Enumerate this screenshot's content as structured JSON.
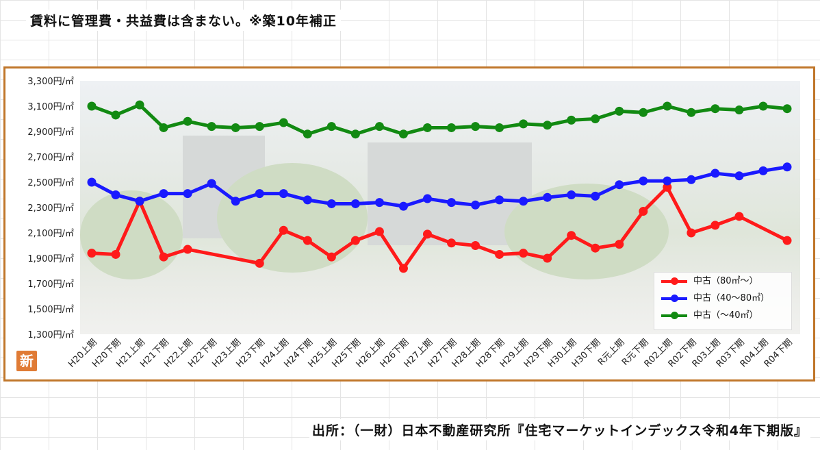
{
  "header_note": "賃料に管理費・共益費は含まない。※築10年補正",
  "source_note": "出所：（一財）日本不動産研究所『住宅マーケットインデックス令和4年下期版』",
  "badge": "新",
  "chart_data": {
    "type": "line",
    "ylim": [
      1300,
      3300
    ],
    "yticks": [
      3300,
      3100,
      2900,
      2700,
      2500,
      2300,
      2100,
      1900,
      1700,
      1500,
      1300
    ],
    "ytick_labels": [
      "3,300円/㎡",
      "3,100円/㎡",
      "2,900円/㎡",
      "2,700円/㎡",
      "2,500円/㎡",
      "2,300円/㎡",
      "2,100円/㎡",
      "1,900円/㎡",
      "1,700円/㎡",
      "1,500円/㎡",
      "1,300円/㎡"
    ],
    "categories": [
      "H20上期",
      "H20下期",
      "H21上期",
      "H21下期",
      "H22上期",
      "H22下期",
      "H23上期",
      "H23下期",
      "H24上期",
      "H24下期",
      "H25上期",
      "H25下期",
      "H26上期",
      "H26下期",
      "H27上期",
      "H27下期",
      "H28上期",
      "H28下期",
      "H29上期",
      "H29下期",
      "H30上期",
      "H30下期",
      "R元上期",
      "R元下期",
      "R02上期",
      "R02下期",
      "R03上期",
      "R03下期",
      "R04上期",
      "R04下期"
    ],
    "legend_position": "bottom-right",
    "series": [
      {
        "name": "中古（80㎡～）",
        "color": "#ff1a1a",
        "values": [
          1940,
          1930,
          2350,
          1910,
          1970,
          null,
          null,
          1860,
          2120,
          2040,
          1910,
          2040,
          2110,
          1820,
          2090,
          2020,
          2000,
          1930,
          1940,
          1900,
          2080,
          1980,
          2010,
          2270,
          2460,
          2100,
          2160,
          2230,
          null,
          2040
        ]
      },
      {
        "name": "中古（40～80㎡）",
        "color": "#1a1aff",
        "values": [
          2500,
          2400,
          2350,
          2410,
          2410,
          2490,
          2350,
          2410,
          2410,
          2360,
          2330,
          2330,
          2340,
          2310,
          2370,
          2340,
          2320,
          2360,
          2350,
          2380,
          2400,
          2390,
          2480,
          2510,
          2510,
          2520,
          2570,
          2550,
          2590,
          2620
        ]
      },
      {
        "name": "中古（～40㎡）",
        "color": "#128a12",
        "values": [
          3100,
          3030,
          3110,
          2930,
          2980,
          2940,
          2930,
          2940,
          2970,
          2880,
          2940,
          2880,
          2940,
          2880,
          2930,
          2930,
          2940,
          2930,
          2960,
          2950,
          2990,
          3000,
          3060,
          3050,
          3100,
          3050,
          3080,
          3070,
          3100,
          3080
        ]
      }
    ]
  }
}
